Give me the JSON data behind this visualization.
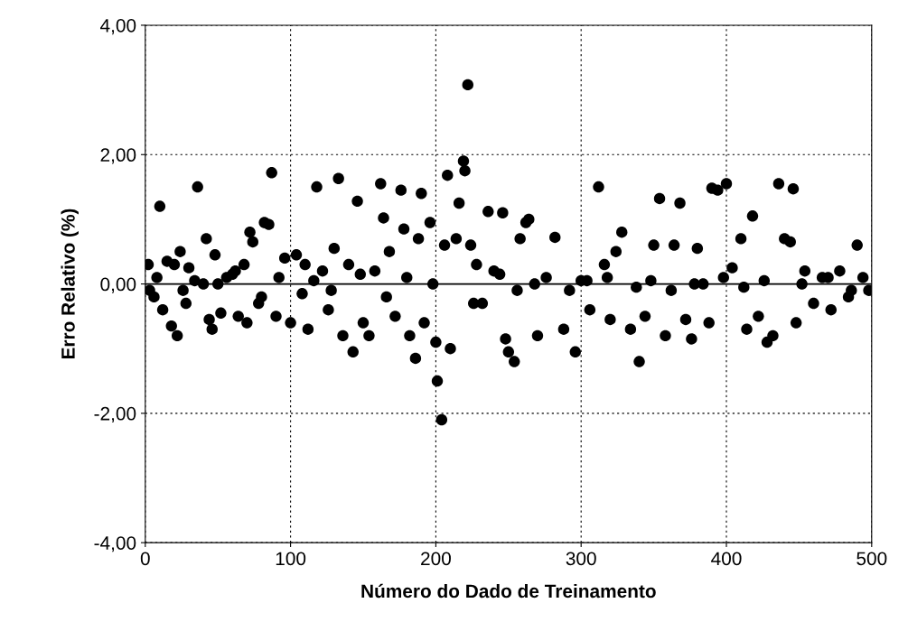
{
  "chart_data": {
    "type": "scatter",
    "xlabel": "Número do Dado de Treinamento",
    "ylabel": "Erro Relativo (%)",
    "xlim": [
      0,
      500
    ],
    "xticks": [
      0,
      100,
      200,
      300,
      400,
      500
    ],
    "ylim": [
      -4,
      4
    ],
    "yticks": [
      {
        "value": -4,
        "label": "-4,00"
      },
      {
        "value": -2,
        "label": "-2,00"
      },
      {
        "value": 0,
        "label": "0,00"
      },
      {
        "value": 2,
        "label": "2,00"
      },
      {
        "value": 4,
        "label": "4,00"
      }
    ],
    "grid": true,
    "marker": "circle",
    "ref_lines": [
      {
        "axis": "y",
        "value": 0,
        "color": "#000000",
        "line_style": "solid"
      }
    ],
    "series": [
      {
        "color": "#000000",
        "x": [
          2,
          3,
          6,
          10,
          12,
          15,
          18,
          20,
          22,
          24,
          28,
          30,
          34,
          36,
          40,
          42,
          44,
          46,
          48,
          52,
          56,
          60,
          64,
          68,
          70,
          72,
          74,
          78,
          82,
          85,
          87,
          90,
          96,
          100,
          104,
          110,
          112,
          118,
          122,
          126,
          130,
          133,
          136,
          140,
          143,
          146,
          150,
          154,
          158,
          162,
          164,
          168,
          172,
          176,
          178,
          182,
          186,
          188,
          190,
          192,
          196,
          200,
          201,
          204,
          206,
          208,
          210,
          214,
          216,
          219,
          220,
          222,
          224,
          228,
          232,
          236,
          240,
          246,
          248,
          250,
          254,
          258,
          262,
          264,
          270,
          282,
          288,
          296,
          300,
          306,
          312,
          316,
          320,
          324,
          328,
          334,
          340,
          344,
          350,
          354,
          358,
          364,
          368,
          372,
          376,
          380,
          384,
          388,
          390,
          394,
          400,
          404,
          410,
          414,
          418,
          422,
          428,
          432,
          436,
          440,
          444,
          446,
          448,
          454,
          460,
          466,
          472,
          478,
          484,
          490,
          494,
          498,
          8,
          26,
          50,
          62,
          80,
          92,
          108,
          116,
          128,
          148,
          166,
          180,
          198,
          226,
          244,
          256,
          268,
          276,
          292,
          304,
          318,
          338,
          348,
          362,
          378,
          398,
          412,
          426,
          452,
          470,
          486
        ],
        "values": [
          0.3,
          -0.1,
          -0.2,
          1.2,
          -0.4,
          0.35,
          -0.65,
          0.3,
          -0.8,
          0.5,
          -0.3,
          0.25,
          0.05,
          1.5,
          0.0,
          0.7,
          -0.55,
          -0.7,
          0.45,
          -0.45,
          0.1,
          0.15,
          -0.5,
          0.3,
          -0.6,
          0.8,
          0.65,
          -0.3,
          0.95,
          0.92,
          1.72,
          -0.5,
          0.4,
          -0.6,
          0.45,
          0.3,
          -0.7,
          1.5,
          0.2,
          -0.4,
          0.55,
          1.63,
          -0.8,
          0.3,
          -1.05,
          1.28,
          -0.6,
          -0.8,
          0.2,
          1.55,
          1.02,
          0.5,
          -0.5,
          1.45,
          0.85,
          -0.8,
          -1.15,
          0.7,
          1.4,
          -0.6,
          0.95,
          -0.9,
          -1.5,
          -2.1,
          0.6,
          1.68,
          -1.0,
          0.7,
          1.25,
          1.9,
          1.75,
          3.08,
          0.6,
          0.3,
          -0.3,
          1.12,
          0.2,
          1.1,
          -0.85,
          -1.05,
          -1.2,
          0.7,
          0.95,
          1.0,
          -0.8,
          0.72,
          -0.7,
          -1.05,
          0.05,
          -0.4,
          1.5,
          0.3,
          -0.55,
          0.5,
          0.8,
          -0.7,
          -1.2,
          -0.5,
          0.6,
          1.32,
          -0.8,
          0.6,
          1.25,
          -0.55,
          -0.85,
          0.55,
          0.0,
          -0.6,
          1.48,
          1.45,
          1.55,
          0.25,
          0.7,
          -0.7,
          1.05,
          -0.5,
          -0.9,
          -0.8,
          1.55,
          0.7,
          0.65,
          1.47,
          -0.6,
          0.2,
          -0.3,
          0.1,
          -0.4,
          0.2,
          -0.2,
          0.6,
          0.1,
          -0.1,
          0.1,
          -0.1,
          0.0,
          0.2,
          -0.2,
          0.1,
          -0.15,
          0.05,
          -0.1,
          0.15,
          -0.2,
          0.1,
          0.0,
          -0.3,
          0.15,
          -0.1,
          0.0,
          0.1,
          -0.1,
          0.05,
          0.1,
          -0.05,
          0.05,
          -0.1,
          0.0,
          0.1,
          -0.05,
          0.05,
          0.0,
          0.1,
          -0.1
        ]
      }
    ]
  }
}
